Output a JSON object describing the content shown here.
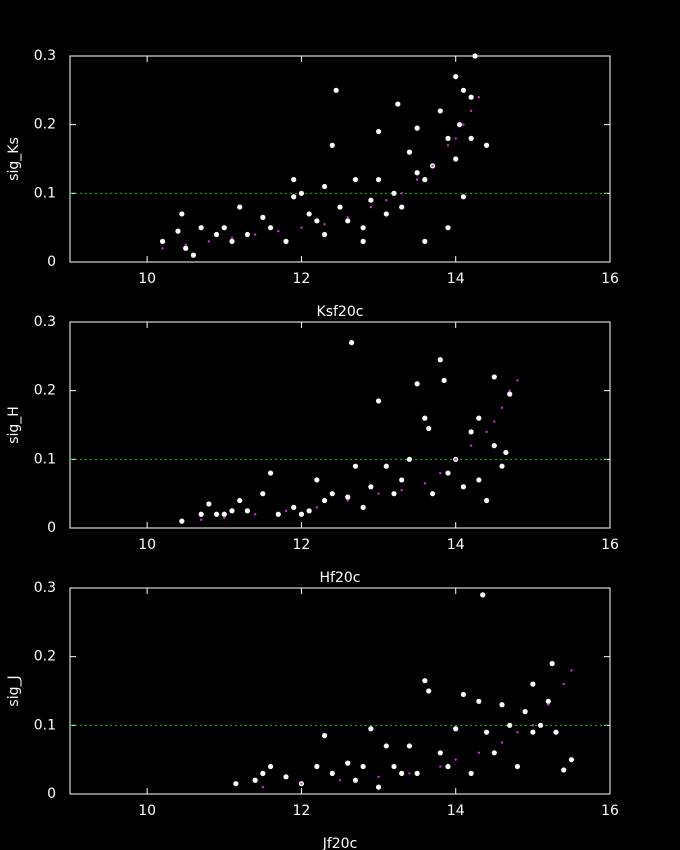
{
  "chart_data": [
    {
      "type": "scatter",
      "ylabel": "sig_Ks",
      "xlabel": "Ksf20c",
      "xlim": [
        9,
        16
      ],
      "ylim": [
        0,
        0.3
      ],
      "xticks": [
        10,
        12,
        14,
        16
      ],
      "yticks": [
        0,
        0.1,
        0.2,
        0.3
      ],
      "reference_line": 0.1,
      "reference_color": "#00cc00",
      "series": [
        {
          "color": "#ffffff",
          "x": [
            10.2,
            10.4,
            10.45,
            10.5,
            10.6,
            10.7,
            10.9,
            11.0,
            11.1,
            11.2,
            11.3,
            11.5,
            11.6,
            11.8,
            11.9,
            11.9,
            12.0,
            12.1,
            12.2,
            12.3,
            12.3,
            12.4,
            12.45,
            12.5,
            12.6,
            12.7,
            12.8,
            12.8,
            12.9,
            13.0,
            13.0,
            13.1,
            13.2,
            13.25,
            13.3,
            13.4,
            13.5,
            13.5,
            13.6,
            13.7,
            13.8,
            13.9,
            14.0,
            14.0,
            14.05,
            14.1,
            14.2,
            14.2,
            14.25,
            14.4,
            13.9,
            14.1,
            13.6
          ],
          "values": [
            0.03,
            0.045,
            0.07,
            0.02,
            0.01,
            0.05,
            0.04,
            0.05,
            0.03,
            0.08,
            0.04,
            0.065,
            0.05,
            0.03,
            0.12,
            0.095,
            0.1,
            0.07,
            0.06,
            0.11,
            0.04,
            0.17,
            0.25,
            0.08,
            0.06,
            0.12,
            0.05,
            0.03,
            0.09,
            0.19,
            0.12,
            0.07,
            0.1,
            0.23,
            0.08,
            0.16,
            0.195,
            0.13,
            0.03,
            0.14,
            0.22,
            0.05,
            0.15,
            0.27,
            0.2,
            0.095,
            0.18,
            0.24,
            0.3,
            0.17,
            0.18,
            0.25,
            0.12
          ]
        },
        {
          "color": "#cc33cc",
          "x": [
            10.2,
            10.5,
            10.8,
            11.1,
            11.4,
            11.7,
            12.0,
            12.3,
            12.6,
            12.9,
            13.1,
            13.3,
            13.5,
            13.7,
            13.9,
            14.0,
            14.1,
            14.2,
            14.3
          ],
          "values": [
            0.02,
            0.025,
            0.03,
            0.035,
            0.04,
            0.045,
            0.05,
            0.055,
            0.065,
            0.08,
            0.09,
            0.1,
            0.12,
            0.14,
            0.17,
            0.18,
            0.2,
            0.22,
            0.24
          ]
        }
      ]
    },
    {
      "type": "scatter",
      "ylabel": "sig_H",
      "xlabel": "Hf20c",
      "xlim": [
        9,
        16
      ],
      "ylim": [
        0,
        0.3
      ],
      "xticks": [
        10,
        12,
        14,
        16
      ],
      "yticks": [
        0,
        0.1,
        0.2,
        0.3
      ],
      "reference_line": 0.1,
      "reference_color": "#00cc00",
      "series": [
        {
          "color": "#ffffff",
          "x": [
            10.45,
            10.7,
            10.8,
            10.9,
            11.1,
            11.2,
            11.3,
            11.5,
            11.6,
            11.7,
            11.9,
            12.1,
            12.2,
            12.3,
            12.4,
            12.6,
            12.65,
            12.7,
            12.8,
            12.9,
            13.0,
            13.1,
            13.2,
            13.3,
            13.4,
            13.5,
            13.6,
            13.65,
            13.7,
            13.8,
            13.85,
            13.9,
            14.0,
            14.1,
            14.2,
            14.3,
            14.3,
            14.4,
            14.5,
            14.5,
            14.6,
            14.65,
            14.7,
            12.0,
            11.0
          ],
          "values": [
            0.01,
            0.02,
            0.035,
            0.02,
            0.025,
            0.04,
            0.025,
            0.05,
            0.08,
            0.02,
            0.03,
            0.025,
            0.07,
            0.04,
            0.05,
            0.045,
            0.27,
            0.09,
            0.03,
            0.06,
            0.185,
            0.09,
            0.05,
            0.07,
            0.1,
            0.21,
            0.16,
            0.145,
            0.05,
            0.245,
            0.215,
            0.08,
            0.1,
            0.06,
            0.14,
            0.16,
            0.07,
            0.04,
            0.22,
            0.12,
            0.09,
            0.11,
            0.195,
            0.02,
            0.02
          ]
        },
        {
          "color": "#cc33cc",
          "x": [
            10.7,
            11.0,
            11.4,
            11.8,
            12.2,
            12.6,
            13.0,
            13.3,
            13.6,
            13.8,
            14.0,
            14.2,
            14.4,
            14.5,
            14.6,
            14.7,
            14.8
          ],
          "values": [
            0.012,
            0.015,
            0.02,
            0.025,
            0.03,
            0.04,
            0.05,
            0.055,
            0.065,
            0.08,
            0.1,
            0.12,
            0.14,
            0.155,
            0.175,
            0.2,
            0.215
          ]
        }
      ]
    },
    {
      "type": "scatter",
      "ylabel": "sig_J",
      "xlabel": "Jf20c",
      "xlim": [
        9,
        16
      ],
      "ylim": [
        0,
        0.3
      ],
      "xticks": [
        10,
        12,
        14,
        16
      ],
      "yticks": [
        0,
        0.1,
        0.2,
        0.3
      ],
      "reference_line": 0.1,
      "reference_color": "#00cc00",
      "series": [
        {
          "color": "#ffffff",
          "x": [
            11.15,
            11.4,
            11.5,
            11.6,
            11.8,
            12.0,
            12.2,
            12.3,
            12.4,
            12.6,
            12.8,
            12.9,
            13.0,
            13.1,
            13.2,
            13.4,
            13.5,
            13.6,
            13.65,
            13.8,
            13.9,
            14.0,
            14.1,
            14.3,
            14.35,
            14.4,
            14.5,
            14.6,
            14.7,
            14.8,
            14.9,
            15.0,
            15.0,
            15.1,
            15.2,
            15.25,
            15.3,
            15.4,
            15.5,
            14.2,
            13.3,
            12.7
          ],
          "values": [
            0.015,
            0.02,
            0.03,
            0.04,
            0.025,
            0.015,
            0.04,
            0.085,
            0.03,
            0.045,
            0.04,
            0.095,
            0.01,
            0.07,
            0.04,
            0.07,
            0.03,
            0.165,
            0.15,
            0.06,
            0.04,
            0.095,
            0.145,
            0.135,
            0.29,
            0.09,
            0.06,
            0.13,
            0.1,
            0.04,
            0.12,
            0.16,
            0.09,
            0.1,
            0.135,
            0.19,
            0.09,
            0.035,
            0.05,
            0.03,
            0.03,
            0.02
          ]
        },
        {
          "color": "#cc33cc",
          "x": [
            11.5,
            12.0,
            12.5,
            13.0,
            13.4,
            13.8,
            14.0,
            14.3,
            14.6,
            14.8,
            15.0,
            15.2,
            15.4,
            15.5
          ],
          "values": [
            0.01,
            0.015,
            0.02,
            0.025,
            0.03,
            0.04,
            0.05,
            0.06,
            0.075,
            0.09,
            0.1,
            0.13,
            0.16,
            0.18
          ]
        }
      ]
    }
  ]
}
